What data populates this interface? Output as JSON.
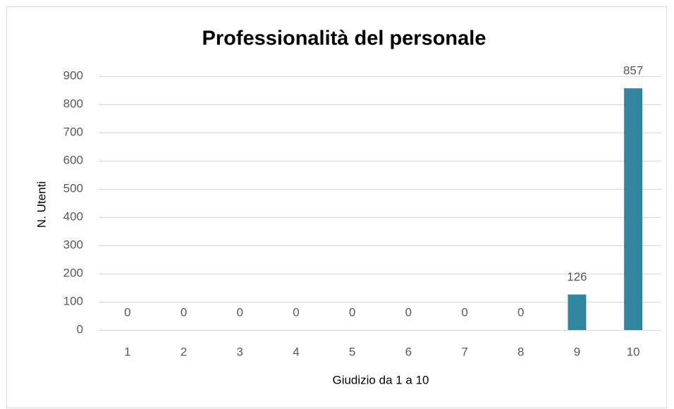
{
  "chart_data": {
    "type": "bar",
    "title": "Professionalità del personale",
    "x_label": "Giudizio da 1 a 10",
    "y_label": "N. Utenti",
    "categories": [
      "1",
      "2",
      "3",
      "4",
      "5",
      "6",
      "7",
      "8",
      "9",
      "10"
    ],
    "values": [
      0,
      0,
      0,
      0,
      0,
      0,
      0,
      0,
      126,
      857
    ],
    "color": "#31869f",
    "ylim": [
      0,
      900
    ],
    "yticks": [
      0,
      100,
      200,
      300,
      400,
      500,
      600,
      700,
      800,
      900
    ],
    "grid": true,
    "data_labels": true
  }
}
